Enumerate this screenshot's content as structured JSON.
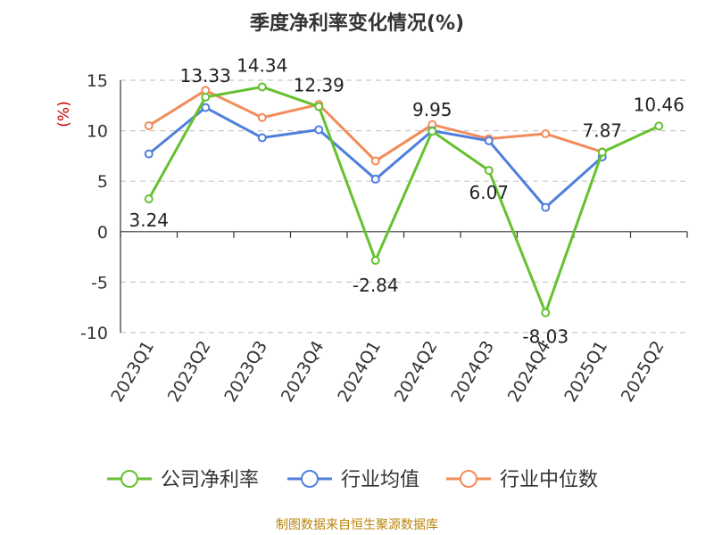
{
  "title": "季度净利率变化情况(%)",
  "source": "制图数据来自恒生聚源数据库",
  "chart_data": {
    "type": "line",
    "title": "季度净利率变化情况(%)",
    "ylabel": "(%)",
    "xlabel": "",
    "categories": [
      "2023Q1",
      "2023Q2",
      "2023Q3",
      "2023Q4",
      "2024Q1",
      "2024Q2",
      "2024Q3",
      "2024Q4",
      "2025Q1",
      "2025Q2"
    ],
    "y_ticks": [
      "15",
      "10",
      "5",
      "0",
      "-5",
      "-10"
    ],
    "ylim": [
      -10,
      15
    ],
    "grid": "horizontal dashed",
    "legend_position": "bottom",
    "series": [
      {
        "name": "公司净利率",
        "color": "#66c12f",
        "values": [
          3.24,
          13.33,
          14.34,
          12.39,
          -2.84,
          9.95,
          6.07,
          -8.03,
          7.87,
          10.46
        ],
        "labels": [
          "3.24",
          "13.33",
          "14.34",
          "12.39",
          "-2.84",
          "9.95",
          "6.07",
          "-8.03",
          "7.87",
          "10.46"
        ]
      },
      {
        "name": "行业均值",
        "color": "#4f7fdc",
        "values": [
          7.7,
          12.3,
          9.3,
          10.1,
          5.2,
          10.0,
          9.0,
          2.4,
          7.4,
          null
        ]
      },
      {
        "name": "行业中位数",
        "color": "#f28c5a",
        "values": [
          10.5,
          14.0,
          11.3,
          12.6,
          7.0,
          10.6,
          9.2,
          9.7,
          7.9,
          null
        ]
      }
    ]
  }
}
